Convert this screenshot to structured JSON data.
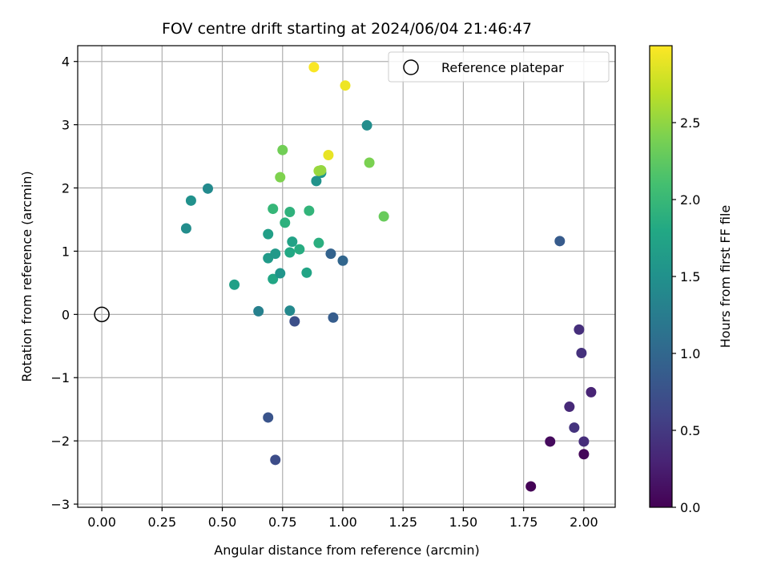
{
  "chart_data": {
    "type": "scatter",
    "title": "FOV centre drift starting at 2024/06/04 21:46:47",
    "xlabel": "Angular distance from reference (arcmin)",
    "ylabel": "Rotation from reference (arcmin)",
    "xlim": [
      -0.1,
      2.13
    ],
    "ylim": [
      -3.05,
      4.25
    ],
    "xticks": [
      "0.00",
      "0.25",
      "0.50",
      "0.75",
      "1.00",
      "1.25",
      "1.50",
      "1.75",
      "2.00"
    ],
    "yticks": [
      "−3",
      "−2",
      "−1",
      "0",
      "1",
      "2",
      "3",
      "4"
    ],
    "grid": true,
    "legend": {
      "position": "top-right",
      "entries": [
        "Reference platepar"
      ]
    },
    "reference_point": {
      "x": 0,
      "y": 0
    },
    "colorbar": {
      "label": "Hours from first FF file",
      "range": [
        0,
        3.0
      ],
      "ticks": [
        "0.0",
        "0.5",
        "1.0",
        "1.5",
        "2.0",
        "2.5"
      ],
      "colormap": "viridis"
    },
    "points": [
      {
        "x": 1.78,
        "y": -2.72,
        "c": 0.02
      },
      {
        "x": 1.86,
        "y": -2.01,
        "c": 0.08
      },
      {
        "x": 2.0,
        "y": -2.21,
        "c": 0.05
      },
      {
        "x": 2.0,
        "y": -2.01,
        "c": 0.38
      },
      {
        "x": 1.96,
        "y": -1.79,
        "c": 0.45
      },
      {
        "x": 1.94,
        "y": -1.46,
        "c": 0.35
      },
      {
        "x": 2.03,
        "y": -1.23,
        "c": 0.3
      },
      {
        "x": 1.99,
        "y": -0.61,
        "c": 0.42
      },
      {
        "x": 1.98,
        "y": -0.24,
        "c": 0.4
      },
      {
        "x": 1.9,
        "y": 1.16,
        "c": 0.85
      },
      {
        "x": 0.72,
        "y": -2.3,
        "c": 0.7
      },
      {
        "x": 0.69,
        "y": -1.63,
        "c": 0.78
      },
      {
        "x": 0.8,
        "y": -0.11,
        "c": 0.72
      },
      {
        "x": 0.96,
        "y": -0.05,
        "c": 0.88
      },
      {
        "x": 0.78,
        "y": 0.06,
        "c": 1.4
      },
      {
        "x": 0.65,
        "y": 0.05,
        "c": 1.3
      },
      {
        "x": 0.95,
        "y": 0.96,
        "c": 0.95
      },
      {
        "x": 1.0,
        "y": 0.85,
        "c": 0.98
      },
      {
        "x": 0.55,
        "y": 0.47,
        "c": 1.7
      },
      {
        "x": 0.71,
        "y": 0.56,
        "c": 1.78
      },
      {
        "x": 0.74,
        "y": 0.65,
        "c": 1.55
      },
      {
        "x": 0.85,
        "y": 0.66,
        "c": 1.75
      },
      {
        "x": 0.69,
        "y": 0.89,
        "c": 1.62
      },
      {
        "x": 0.72,
        "y": 0.96,
        "c": 1.6
      },
      {
        "x": 0.78,
        "y": 0.98,
        "c": 1.8
      },
      {
        "x": 0.82,
        "y": 1.03,
        "c": 1.85
      },
      {
        "x": 0.79,
        "y": 1.15,
        "c": 1.72
      },
      {
        "x": 0.9,
        "y": 1.13,
        "c": 1.88
      },
      {
        "x": 0.69,
        "y": 1.27,
        "c": 1.68
      },
      {
        "x": 0.76,
        "y": 1.45,
        "c": 1.9
      },
      {
        "x": 0.78,
        "y": 1.62,
        "c": 1.92
      },
      {
        "x": 0.86,
        "y": 1.64,
        "c": 1.95
      },
      {
        "x": 0.71,
        "y": 1.67,
        "c": 1.98
      },
      {
        "x": 0.35,
        "y": 1.36,
        "c": 1.45
      },
      {
        "x": 0.37,
        "y": 1.8,
        "c": 1.5
      },
      {
        "x": 0.44,
        "y": 1.99,
        "c": 1.42
      },
      {
        "x": 0.89,
        "y": 2.11,
        "c": 1.52
      },
      {
        "x": 0.91,
        "y": 2.24,
        "c": 1.55
      },
      {
        "x": 0.74,
        "y": 2.17,
        "c": 2.42
      },
      {
        "x": 0.9,
        "y": 2.27,
        "c": 2.55
      },
      {
        "x": 0.91,
        "y": 2.28,
        "c": 2.52
      },
      {
        "x": 0.75,
        "y": 2.6,
        "c": 2.35
      },
      {
        "x": 0.94,
        "y": 2.52,
        "c": 2.9
      },
      {
        "x": 1.11,
        "y": 2.4,
        "c": 2.4
      },
      {
        "x": 1.17,
        "y": 1.55,
        "c": 2.3
      },
      {
        "x": 1.1,
        "y": 2.99,
        "c": 1.45
      },
      {
        "x": 0.88,
        "y": 3.91,
        "c": 2.98
      },
      {
        "x": 1.01,
        "y": 3.62,
        "c": 2.93
      }
    ]
  }
}
